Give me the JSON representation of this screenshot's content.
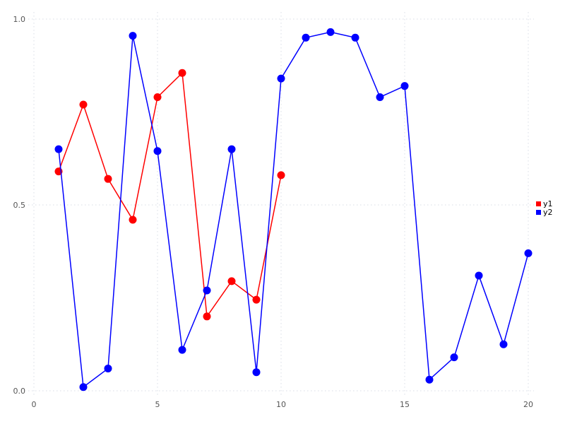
{
  "chart_data": {
    "type": "line",
    "title": "",
    "xlabel": "",
    "ylabel": "",
    "xlim": [
      0,
      20
    ],
    "ylim": [
      0.0,
      1.0
    ],
    "grid": true,
    "grid_style": "dotted",
    "legend_position": "right-outside",
    "marker": "filled-circle",
    "background_color": "#ffffff",
    "grid_color": "#d8dce6",
    "tick_label_color": "#555555",
    "legend_text_color": "#000000",
    "xticks": [
      0,
      5,
      10,
      15,
      20
    ],
    "xtick_labels": [
      "0",
      "5",
      "10",
      "15",
      "20"
    ],
    "yticks": [
      0.0,
      0.5,
      1.0
    ],
    "ytick_labels": [
      "0.0",
      "0.5",
      "1.0"
    ],
    "series": [
      {
        "name": "y1",
        "color": "#ff0000",
        "x": [
          1,
          2,
          3,
          4,
          5,
          6,
          7,
          8,
          9,
          10
        ],
        "values": [
          0.59,
          0.77,
          0.57,
          0.46,
          0.79,
          0.855,
          0.2,
          0.295,
          0.245,
          0.58
        ]
      },
      {
        "name": "y2",
        "color": "#0000ff",
        "x": [
          1,
          2,
          3,
          4,
          5,
          6,
          7,
          8,
          9,
          10,
          11,
          12,
          13,
          14,
          15,
          16,
          17,
          18,
          19,
          20
        ],
        "values": [
          0.65,
          0.01,
          0.06,
          0.955,
          0.645,
          0.11,
          0.27,
          0.65,
          0.05,
          0.84,
          0.95,
          0.965,
          0.95,
          0.79,
          0.82,
          0.03,
          0.09,
          0.31,
          0.125,
          0.37
        ]
      }
    ],
    "legend": [
      {
        "label": "y1",
        "color": "#ff0000"
      },
      {
        "label": "y2",
        "color": "#0000ff"
      }
    ]
  }
}
